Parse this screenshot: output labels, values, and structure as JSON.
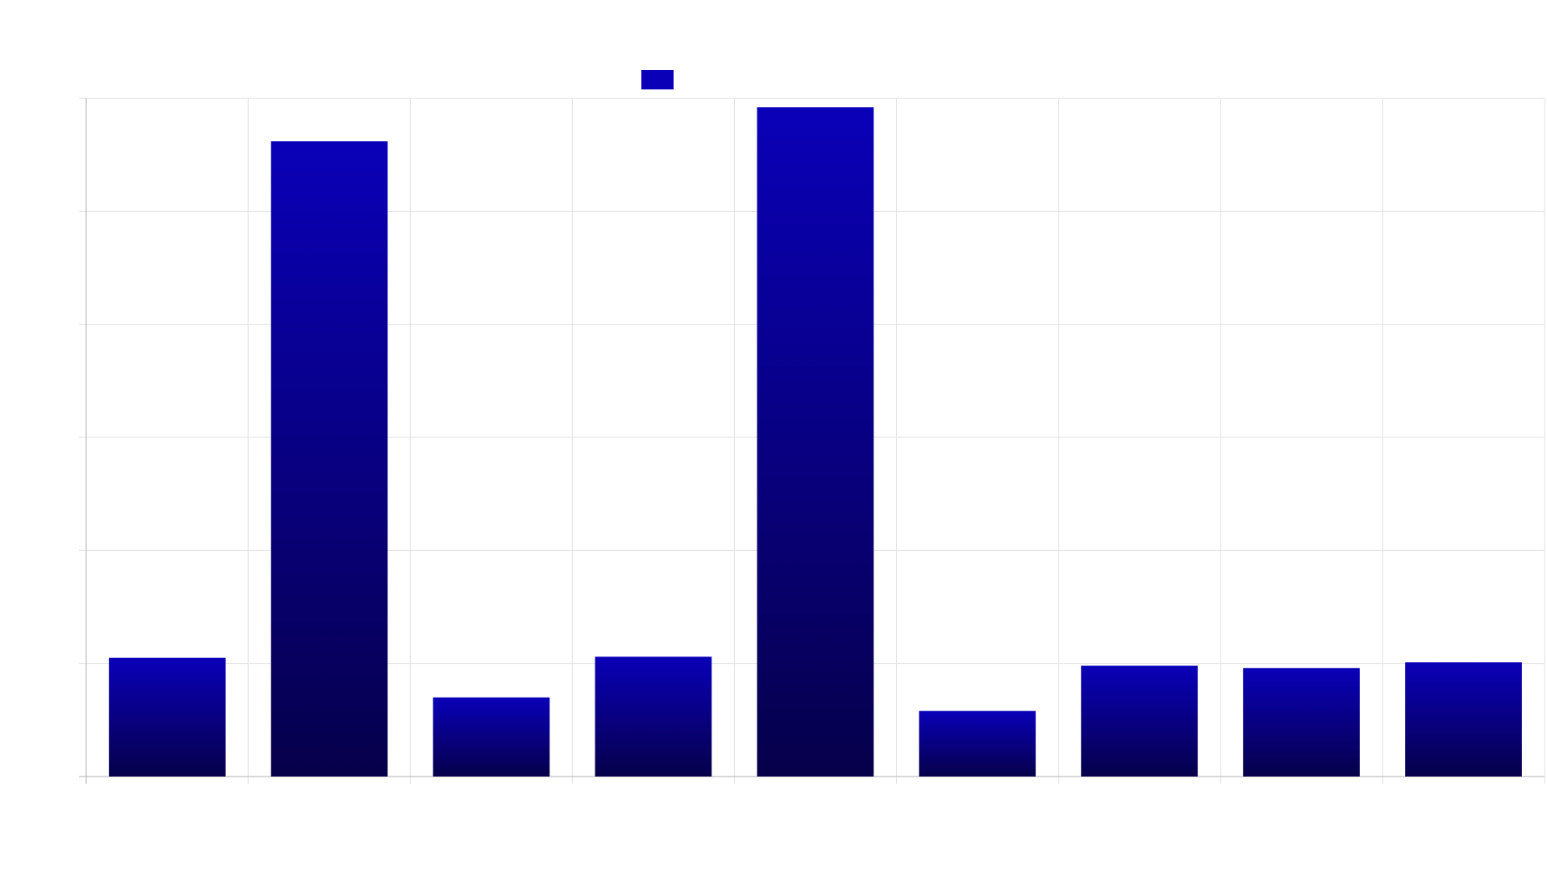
{
  "chart_data": {
    "type": "bar",
    "categories": [
      "",
      "",
      "",
      "",
      "",
      "",
      "",
      "",
      ""
    ],
    "series": [
      {
        "name": "",
        "values": [
          1.05,
          5.62,
          0.7,
          1.06,
          5.92,
          0.58,
          0.98,
          0.96,
          1.01
        ]
      }
    ],
    "ylim": [
      0,
      6
    ],
    "y_ticks": [
      0,
      1,
      2,
      3,
      4,
      5,
      6
    ],
    "grid": true,
    "legend": "top-center",
    "title": "",
    "xlabel": "",
    "ylabel": ""
  },
  "colors": {
    "bar_top": "#0a00b8",
    "bar_bottom": "#06004a",
    "legend_swatch": "#0a00b8",
    "grid": "#e0e0e0",
    "axis": "#b0b0b0"
  }
}
